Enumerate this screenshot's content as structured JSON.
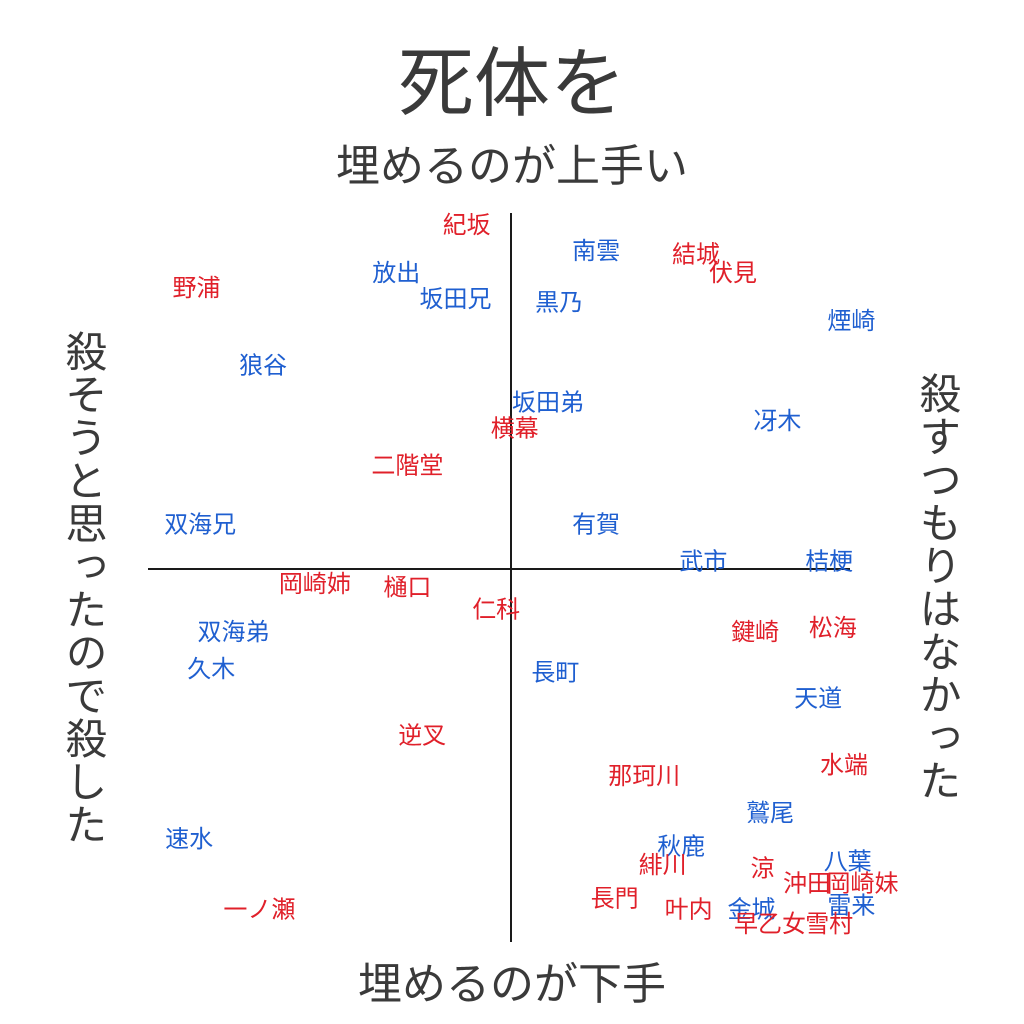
{
  "title": "死体を",
  "axis_labels": {
    "top": "埋めるのが上手い",
    "bottom": "埋めるのが下手",
    "left": "殺そうと思ったので殺した",
    "right": "殺すつもりはなかった"
  },
  "colors": {
    "red": "#e0202a",
    "blue": "#1f5fd0",
    "axis": "#1a1a1a",
    "title": "#3a3a3a"
  },
  "chart_data": {
    "type": "scatter",
    "title": "死体を",
    "ylabel_top": "埋めるのが上手い",
    "ylabel_bottom": "埋めるのが下手",
    "xlabel_left": "殺そうと思ったので殺した",
    "xlabel_right": "殺すつもりはなかった",
    "xlim": [
      -10,
      10
    ],
    "ylim": [
      -10,
      10
    ],
    "points": [
      {
        "label": "紀坂",
        "color": "red",
        "x": -1.2,
        "y": 9.3
      },
      {
        "label": "南雲",
        "color": "blue",
        "x": 2.3,
        "y": 8.6
      },
      {
        "label": "結城",
        "color": "red",
        "x": 5.0,
        "y": 8.5
      },
      {
        "label": "伏見",
        "color": "red",
        "x": 6.0,
        "y": 8.0
      },
      {
        "label": "放出",
        "color": "blue",
        "x": -3.1,
        "y": 8.0
      },
      {
        "label": "野浦",
        "color": "red",
        "x": -8.5,
        "y": 7.6
      },
      {
        "label": "坂田兄",
        "color": "blue",
        "x": -1.5,
        "y": 7.3
      },
      {
        "label": "黒乃",
        "color": "blue",
        "x": 1.3,
        "y": 7.2
      },
      {
        "label": "煙崎",
        "color": "blue",
        "x": 9.2,
        "y": 6.7
      },
      {
        "label": "狼谷",
        "color": "blue",
        "x": -6.7,
        "y": 5.5
      },
      {
        "label": "坂田弟",
        "color": "blue",
        "x": 1.0,
        "y": 4.5
      },
      {
        "label": "冴木",
        "color": "blue",
        "x": 7.2,
        "y": 4.0
      },
      {
        "label": "横幕",
        "color": "red",
        "x": 0.1,
        "y": 3.8
      },
      {
        "label": "二階堂",
        "color": "red",
        "x": -2.8,
        "y": 2.8
      },
      {
        "label": "双海兄",
        "color": "blue",
        "x": -8.4,
        "y": 1.2
      },
      {
        "label": "有賀",
        "color": "blue",
        "x": 2.3,
        "y": 1.2
      },
      {
        "label": "武市",
        "color": "blue",
        "x": 5.2,
        "y": 0.2
      },
      {
        "label": "桔梗",
        "color": "blue",
        "x": 8.6,
        "y": 0.2
      },
      {
        "label": "岡崎姉",
        "color": "red",
        "x": -5.3,
        "y": -0.4
      },
      {
        "label": "樋口",
        "color": "red",
        "x": -2.8,
        "y": -0.5
      },
      {
        "label": "仁科",
        "color": "red",
        "x": -0.4,
        "y": -1.1
      },
      {
        "label": "双海弟",
        "color": "blue",
        "x": -7.5,
        "y": -1.7
      },
      {
        "label": "鍵崎",
        "color": "red",
        "x": 6.6,
        "y": -1.7
      },
      {
        "label": "松海",
        "color": "red",
        "x": 8.7,
        "y": -1.6
      },
      {
        "label": "久木",
        "color": "blue",
        "x": -8.1,
        "y": -2.7
      },
      {
        "label": "長町",
        "color": "blue",
        "x": 1.2,
        "y": -2.8
      },
      {
        "label": "天道",
        "color": "blue",
        "x": 8.3,
        "y": -3.5
      },
      {
        "label": "逆叉",
        "color": "red",
        "x": -2.4,
        "y": -4.5
      },
      {
        "label": "水端",
        "color": "red",
        "x": 9.0,
        "y": -5.3
      },
      {
        "label": "那珂川",
        "color": "red",
        "x": 3.6,
        "y": -5.6
      },
      {
        "label": "鷲尾",
        "color": "blue",
        "x": 7.0,
        "y": -6.6
      },
      {
        "label": "速水",
        "color": "blue",
        "x": -8.7,
        "y": -7.3
      },
      {
        "label": "秋鹿",
        "color": "blue",
        "x": 4.6,
        "y": -7.5
      },
      {
        "label": "緋川",
        "color": "red",
        "x": 4.1,
        "y": -8.0
      },
      {
        "label": "涼",
        "color": "red",
        "x": 6.8,
        "y": -8.1
      },
      {
        "label": "八葉",
        "color": "blue",
        "x": 9.1,
        "y": -7.9
      },
      {
        "label": "沖田",
        "color": "red",
        "x": 8.0,
        "y": -8.5
      },
      {
        "label": "岡崎妹",
        "color": "red",
        "x": 9.5,
        "y": -8.5
      },
      {
        "label": "長門",
        "color": "red",
        "x": 2.8,
        "y": -8.9
      },
      {
        "label": "叶内",
        "color": "red",
        "x": 4.8,
        "y": -9.2
      },
      {
        "label": "金城",
        "color": "blue",
        "x": 6.5,
        "y": -9.2
      },
      {
        "label": "雷来",
        "color": "blue",
        "x": 9.2,
        "y": -9.1
      },
      {
        "label": "一ノ瀬",
        "color": "red",
        "x": -6.8,
        "y": -9.2
      },
      {
        "label": "早乙女",
        "color": "red",
        "x": 7.0,
        "y": -9.6
      },
      {
        "label": "雪村",
        "color": "red",
        "x": 8.6,
        "y": -9.6
      }
    ]
  }
}
